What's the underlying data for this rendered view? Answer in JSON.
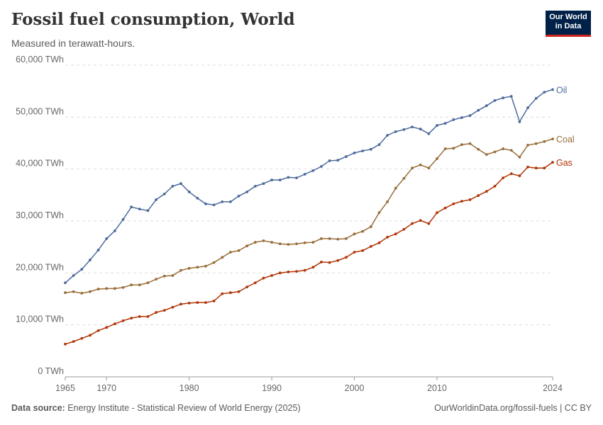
{
  "header": {
    "title": "Fossil fuel consumption, World",
    "subtitle": "Measured in terawatt-hours.",
    "logo": "Our World in Data"
  },
  "footer": {
    "source_label": "Data source:",
    "source": "Energy Institute - Statistical Review of World Energy (2025)",
    "link": "OurWorldinData.org/fossil-fuels | CC BY"
  },
  "chart_data": {
    "type": "line",
    "title": "Fossil fuel consumption, World",
    "subtitle": "Measured in terawatt-hours.",
    "xlabel": "",
    "ylabel": "",
    "ylim": [
      0,
      60000
    ],
    "xlim": [
      1965,
      2024
    ],
    "y_ticks": [
      0,
      10000,
      20000,
      30000,
      40000,
      50000,
      60000
    ],
    "y_tick_labels": [
      "0 TWh",
      "10,000 TWh",
      "20,000 TWh",
      "30,000 TWh",
      "40,000 TWh",
      "50,000 TWh",
      "60,000 TWh"
    ],
    "x_ticks": [
      1965,
      1970,
      1980,
      1990,
      2000,
      2010,
      2024
    ],
    "grid": "horizontal dashed",
    "legend": "inline labels at line ends",
    "x": [
      1965,
      1966,
      1967,
      1968,
      1969,
      1970,
      1971,
      1972,
      1973,
      1974,
      1975,
      1976,
      1977,
      1978,
      1979,
      1980,
      1981,
      1982,
      1983,
      1984,
      1985,
      1986,
      1987,
      1988,
      1989,
      1990,
      1991,
      1992,
      1993,
      1994,
      1995,
      1996,
      1997,
      1998,
      1999,
      2000,
      2001,
      2002,
      2003,
      2004,
      2005,
      2006,
      2007,
      2008,
      2009,
      2010,
      2011,
      2012,
      2013,
      2014,
      2015,
      2016,
      2017,
      2018,
      2019,
      2020,
      2021,
      2022,
      2023,
      2024
    ],
    "series": [
      {
        "name": "Oil",
        "color": "#4c6a9c",
        "values": [
          18100,
          19500,
          20700,
          22500,
          24400,
          26600,
          28100,
          30300,
          32700,
          32300,
          32000,
          34100,
          35200,
          36700,
          37200,
          35600,
          34400,
          33300,
          33100,
          33700,
          33700,
          34800,
          35600,
          36700,
          37200,
          37900,
          37900,
          38400,
          38300,
          39000,
          39700,
          40500,
          41600,
          41700,
          42400,
          43100,
          43500,
          43800,
          44700,
          46500,
          47200,
          47600,
          48100,
          47700,
          46800,
          48400,
          48800,
          49500,
          49900,
          50300,
          51300,
          52200,
          53200,
          53700,
          54000,
          49100,
          51800,
          53600,
          54800,
          55300
        ]
      },
      {
        "name": "Coal",
        "color": "#996d39",
        "values": [
          16200,
          16400,
          16100,
          16400,
          16900,
          17000,
          17000,
          17200,
          17700,
          17700,
          18100,
          18800,
          19400,
          19500,
          20500,
          20900,
          21100,
          21300,
          22000,
          23000,
          24000,
          24300,
          25200,
          25900,
          26200,
          25900,
          25600,
          25500,
          25600,
          25800,
          25900,
          26600,
          26600,
          26500,
          26600,
          27500,
          28000,
          28900,
          31600,
          33700,
          36300,
          38200,
          40200,
          40800,
          40200,
          42000,
          43900,
          44000,
          44700,
          44900,
          43800,
          42800,
          43300,
          43900,
          43600,
          42300,
          44600,
          44900,
          45300,
          45800
        ]
      },
      {
        "name": "Gas",
        "color": "#b13507",
        "values": [
          6300,
          6800,
          7400,
          8000,
          8900,
          9500,
          10200,
          10800,
          11300,
          11600,
          11600,
          12400,
          12800,
          13400,
          14000,
          14200,
          14300,
          14300,
          14600,
          16000,
          16200,
          16400,
          17300,
          18100,
          19000,
          19500,
          20000,
          20200,
          20300,
          20500,
          21100,
          22100,
          22000,
          22400,
          23000,
          24000,
          24300,
          25100,
          25800,
          26900,
          27500,
          28400,
          29500,
          30100,
          29500,
          31600,
          32500,
          33300,
          33800,
          34100,
          34900,
          35700,
          36700,
          38300,
          39100,
          38700,
          40400,
          40200,
          40200,
          41300
        ]
      }
    ]
  }
}
